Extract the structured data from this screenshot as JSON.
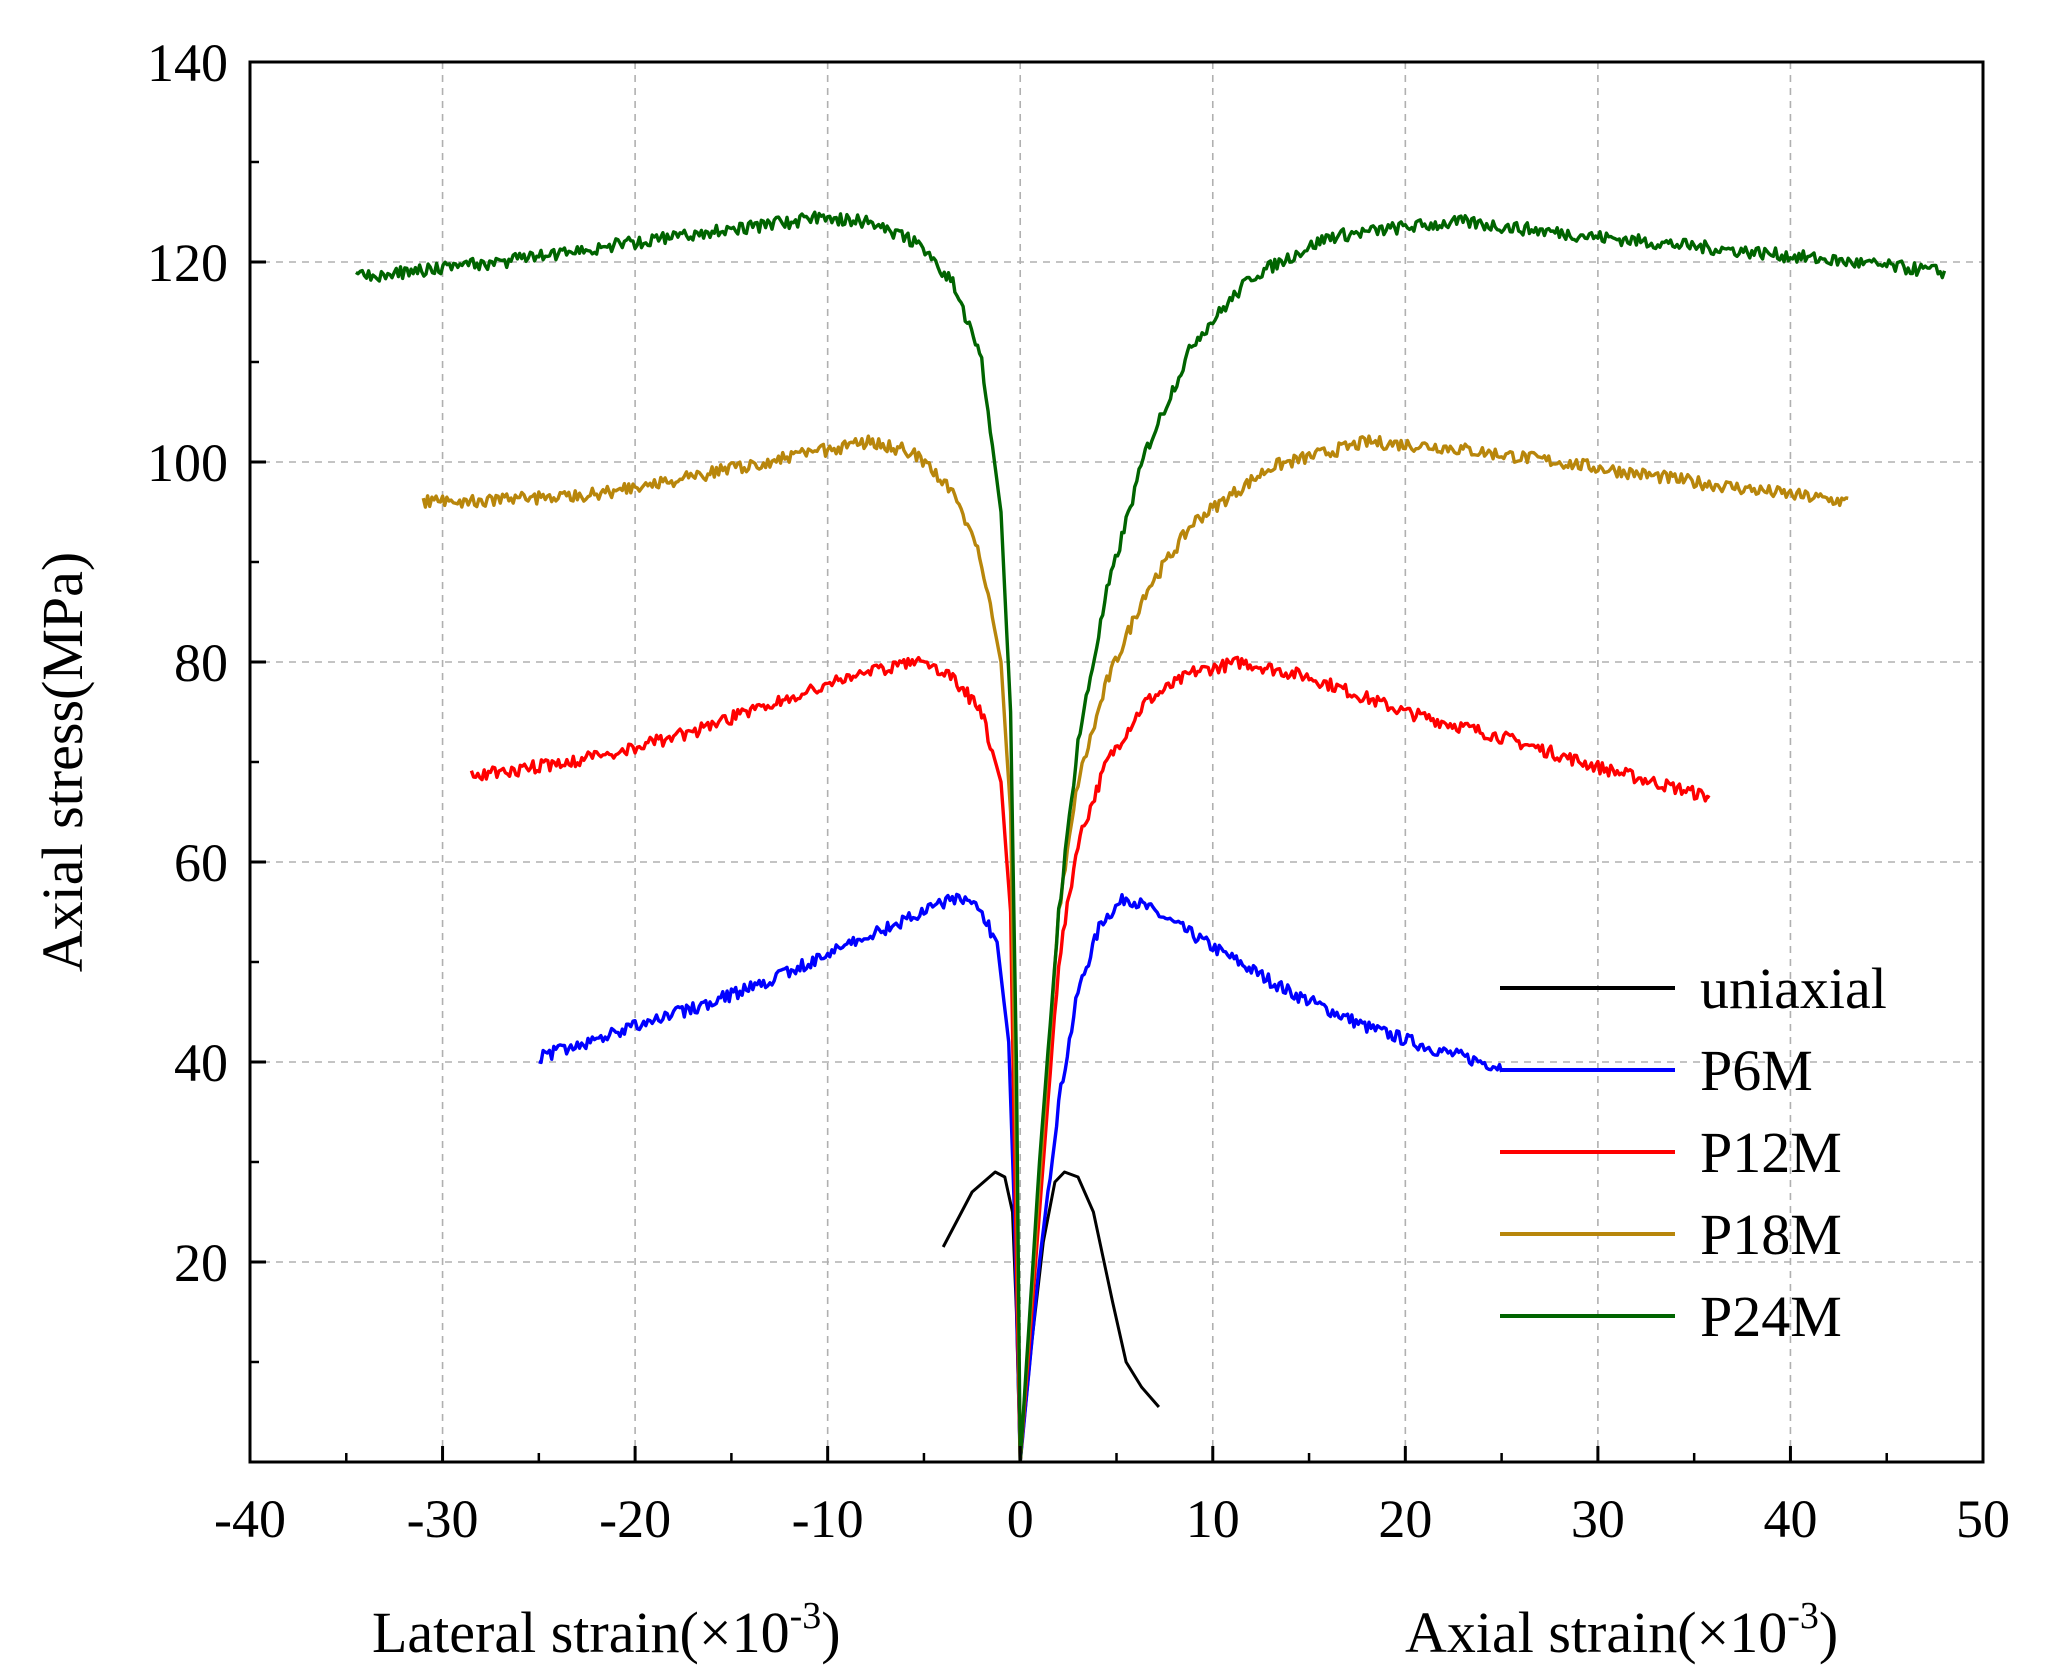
{
  "chart_data": {
    "type": "line",
    "xlabel_left": "Lateral strain(×10",
    "xlabel_right": "Axial strain(×10",
    "xlabel_exponent": "-3",
    "xlabel_close": ")",
    "ylabel": "Axial stress(MPa)",
    "xlim": [
      -40,
      50
    ],
    "ylim": [
      0,
      140
    ],
    "x_ticks": [
      -40,
      -30,
      -20,
      -10,
      0,
      10,
      20,
      30,
      40,
      50
    ],
    "x_tick_labels": [
      "-40",
      "-30",
      "-20",
      "-10",
      "0",
      "10",
      "20",
      "30",
      "40",
      "50"
    ],
    "y_ticks": [
      20,
      40,
      60,
      80,
      100,
      120,
      140
    ],
    "y_tick_labels": [
      "20",
      "40",
      "60",
      "80",
      "100",
      "120",
      "140"
    ],
    "grid": true,
    "legend_position": "bottom-right",
    "series": [
      {
        "name": "uniaxial",
        "color": "#000000",
        "lateral": [
          [
            0,
            0
          ],
          [
            -0.2,
            15
          ],
          [
            -0.4,
            25
          ],
          [
            -0.8,
            28.5
          ],
          [
            -1.3,
            29
          ],
          [
            -2.5,
            27
          ],
          [
            -4,
            21.5
          ]
        ],
        "axial": [
          [
            0,
            0
          ],
          [
            0.6,
            12
          ],
          [
            1.2,
            22
          ],
          [
            1.8,
            28
          ],
          [
            2.3,
            29
          ],
          [
            3,
            28.5
          ],
          [
            3.8,
            25
          ],
          [
            4.8,
            16
          ],
          [
            5.5,
            10
          ],
          [
            6.3,
            7.5
          ],
          [
            7.2,
            5.5
          ]
        ]
      },
      {
        "name": "P6M",
        "color": "#0000ff",
        "lateral": [
          [
            0,
            0
          ],
          [
            -0.3,
            25
          ],
          [
            -0.6,
            42
          ],
          [
            -1.2,
            52
          ],
          [
            -2.2,
            55.5
          ],
          [
            -3.3,
            56.5
          ],
          [
            -5,
            55
          ],
          [
            -8,
            52.5
          ],
          [
            -12,
            49
          ],
          [
            -16,
            46
          ],
          [
            -20,
            43.5
          ],
          [
            -25,
            40.5
          ]
        ],
        "axial": [
          [
            0,
            0
          ],
          [
            1,
            20
          ],
          [
            2,
            36
          ],
          [
            3,
            47
          ],
          [
            4.2,
            54
          ],
          [
            5.5,
            56.5
          ],
          [
            7,
            55
          ],
          [
            10,
            51.5
          ],
          [
            14,
            47
          ],
          [
            18,
            43.5
          ],
          [
            22,
            41
          ],
          [
            25,
            39.5
          ]
        ]
      },
      {
        "name": "P12M",
        "color": "#ff0000",
        "lateral": [
          [
            0,
            0
          ],
          [
            -0.2,
            20
          ],
          [
            -0.5,
            55
          ],
          [
            -1,
            68
          ],
          [
            -2,
            75
          ],
          [
            -3.5,
            78.5
          ],
          [
            -5.5,
            80
          ],
          [
            -8,
            79
          ],
          [
            -12,
            76.5
          ],
          [
            -17,
            73
          ],
          [
            -22,
            70.5
          ],
          [
            -28.5,
            68.5
          ]
        ],
        "axial": [
          [
            0,
            0
          ],
          [
            1,
            25
          ],
          [
            2,
            50
          ],
          [
            3,
            62
          ],
          [
            4.5,
            70
          ],
          [
            6.5,
            76
          ],
          [
            9,
            79
          ],
          [
            11.5,
            80
          ],
          [
            15,
            78.5
          ],
          [
            20,
            75
          ],
          [
            25,
            72.5
          ],
          [
            30,
            69.5
          ],
          [
            35.8,
            66.5
          ]
        ]
      },
      {
        "name": "P18M",
        "color": "#b8860b",
        "lateral": [
          [
            0,
            0
          ],
          [
            -0.2,
            30
          ],
          [
            -0.5,
            65
          ],
          [
            -1,
            80
          ],
          [
            -2,
            90
          ],
          [
            -3.5,
            97
          ],
          [
            -5.5,
            101
          ],
          [
            -8,
            102
          ],
          [
            -12,
            100.5
          ],
          [
            -17,
            98.5
          ],
          [
            -23,
            96.5
          ],
          [
            -31,
            96
          ]
        ],
        "axial": [
          [
            0,
            0
          ],
          [
            1,
            28
          ],
          [
            2,
            55
          ],
          [
            3,
            68
          ],
          [
            4.5,
            78
          ],
          [
            6.5,
            87
          ],
          [
            9,
            94
          ],
          [
            13,
            99.5
          ],
          [
            18,
            102
          ],
          [
            22,
            101.5
          ],
          [
            28,
            100
          ],
          [
            35,
            98
          ],
          [
            43,
            96
          ]
        ]
      },
      {
        "name": "P24M",
        "color": "#006400",
        "lateral": [
          [
            0,
            0
          ],
          [
            -0.2,
            40
          ],
          [
            -0.5,
            75
          ],
          [
            -1,
            95
          ],
          [
            -2,
            110
          ],
          [
            -3.5,
            118
          ],
          [
            -5.5,
            122
          ],
          [
            -8,
            124
          ],
          [
            -10,
            124.5
          ],
          [
            -14,
            123.5
          ],
          [
            -20,
            122
          ],
          [
            -27,
            120
          ],
          [
            -34.5,
            118.5
          ]
        ],
        "axial": [
          [
            0,
            0
          ],
          [
            1,
            30
          ],
          [
            2,
            55
          ],
          [
            3,
            72
          ],
          [
            4.5,
            87
          ],
          [
            6.5,
            101
          ],
          [
            9,
            112
          ],
          [
            12,
            118.5
          ],
          [
            16,
            122.5
          ],
          [
            20,
            123.5
          ],
          [
            23,
            124
          ],
          [
            30,
            122.5
          ],
          [
            38,
            121
          ],
          [
            48,
            119
          ]
        ]
      }
    ]
  }
}
